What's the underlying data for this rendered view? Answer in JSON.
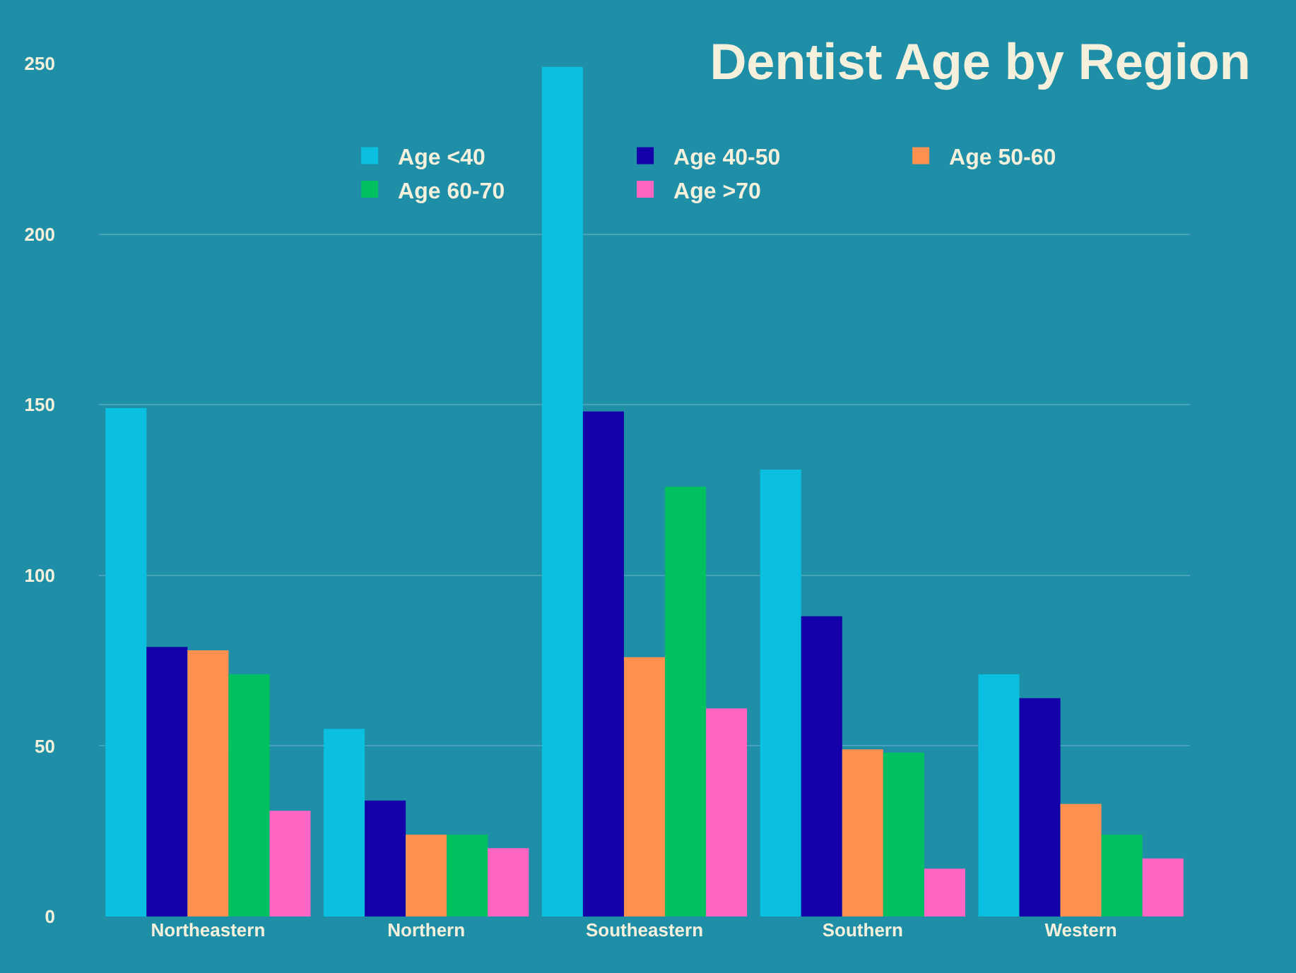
{
  "chart_data": {
    "type": "bar",
    "title": "Dentist Age by Region",
    "categories": [
      "Northeastern",
      "Northern",
      "Southeastern",
      "Southern",
      "Western"
    ],
    "series": [
      {
        "name": "Age <40",
        "color": "#0bbfe0",
        "values": [
          149,
          55,
          249,
          131,
          71
        ]
      },
      {
        "name": "Age 40-50",
        "color": "#1400a8",
        "values": [
          79,
          34,
          148,
          88,
          64
        ]
      },
      {
        "name": "Age 50-60",
        "color": "#ff9150",
        "values": [
          78,
          24,
          76,
          49,
          33
        ]
      },
      {
        "name": "Age 60-70",
        "color": "#00c060",
        "values": [
          71,
          24,
          126,
          48,
          24
        ]
      },
      {
        "name": "Age >70",
        "color": "#ff66c4",
        "values": [
          31,
          20,
          61,
          14,
          17
        ]
      }
    ],
    "ylim": [
      0,
      250
    ],
    "yticks": [
      0,
      50,
      100,
      150,
      200,
      250
    ],
    "grid": "y",
    "legend": "top right"
  }
}
